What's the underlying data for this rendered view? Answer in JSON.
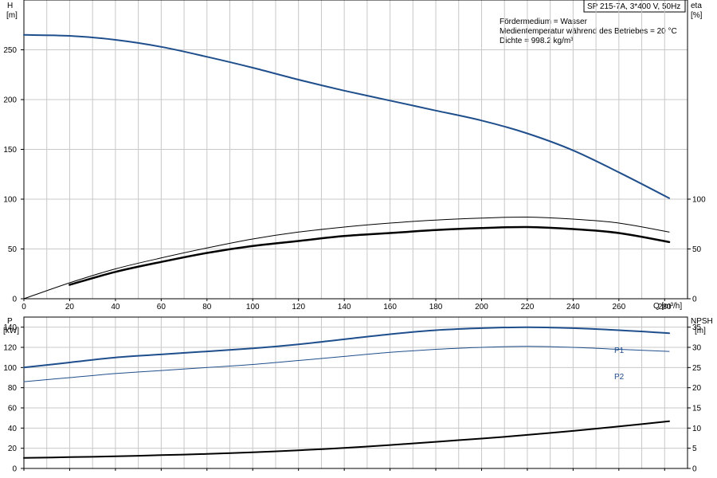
{
  "title_box": "SP 215-7A, 3*400 V, 50Hz",
  "info_lines": [
    "Fördermedium = Wasser",
    "Medientemperatur während des Betriebes = 20 °C",
    "Dichte = 998.2 kg/m³"
  ],
  "colors": {
    "blue": "#1f4e8c",
    "black": "#000000",
    "grid": "#c8c8c8"
  },
  "chart_data": [
    {
      "type": "line",
      "name_ref": "head-efficiency",
      "xlabel": "Q [m³/h]",
      "ylabel_top": "H",
      "ylabel_unit": "[m]",
      "y2label_top": "eta",
      "y2label_unit": "[%]",
      "xlim": [
        0,
        290
      ],
      "ylim": [
        0,
        300
      ],
      "y2lim": [
        0,
        300
      ],
      "x_ticks": [
        "0",
        "20",
        "40",
        "60",
        "80",
        "100",
        "120",
        "140",
        "160",
        "180",
        "200",
        "220",
        "240",
        "260",
        "280"
      ],
      "x_tick_values": [
        0,
        20,
        40,
        60,
        80,
        100,
        120,
        140,
        160,
        180,
        200,
        220,
        240,
        260,
        280
      ],
      "y_ticks": [
        "0",
        "50",
        "100",
        "150",
        "200",
        "250"
      ],
      "y_tick_values": [
        0,
        50,
        100,
        150,
        200,
        250
      ],
      "y2_ticks": [
        "0",
        "50",
        "100"
      ],
      "y2_tick_values": [
        0,
        50,
        100
      ],
      "grid": true,
      "series": [
        {
          "color": "#1f4e8c",
          "width": 2,
          "axis": "y",
          "x": [
            0,
            20,
            40,
            60,
            80,
            100,
            120,
            140,
            160,
            180,
            200,
            220,
            240,
            260,
            282
          ],
          "y": [
            265,
            264,
            260,
            253,
            243,
            232,
            220,
            209,
            199,
            189,
            179,
            166,
            149,
            127,
            101
          ]
        },
        {
          "color": "#000000",
          "width": 1,
          "axis": "y2",
          "x": [
            0,
            20,
            40,
            60,
            80,
            100,
            120,
            140,
            160,
            180,
            200,
            220,
            240,
            260,
            282
          ],
          "y": [
            0,
            16,
            30,
            41,
            51,
            60,
            67,
            72,
            76,
            79,
            81,
            82,
            80,
            76,
            67
          ]
        },
        {
          "color": "#000000",
          "width": 2.5,
          "axis": "y2",
          "x": [
            20,
            40,
            60,
            80,
            100,
            120,
            140,
            160,
            180,
            200,
            220,
            240,
            260,
            282
          ],
          "y": [
            14,
            27,
            37,
            46,
            53,
            58,
            63,
            66,
            69,
            71,
            72,
            70,
            66,
            57
          ]
        }
      ]
    },
    {
      "type": "line",
      "name_ref": "power-npsh",
      "ylabel_top": "P",
      "ylabel_unit": "[kW]",
      "y2label_top": "NPSH",
      "y2label_unit": "[m]",
      "xlim": [
        0,
        290
      ],
      "ylim": [
        0,
        150
      ],
      "y2lim": [
        0,
        37.5
      ],
      "y_ticks": [
        "0",
        "20",
        "40",
        "60",
        "80",
        "100",
        "120",
        "140"
      ],
      "y_tick_values": [
        0,
        20,
        40,
        60,
        80,
        100,
        120,
        140
      ],
      "y2_ticks": [
        "0",
        "5",
        "10",
        "15",
        "20",
        "25",
        "30",
        "35"
      ],
      "y2_tick_values": [
        0,
        5,
        10,
        15,
        20,
        25,
        30,
        35
      ],
      "grid": true,
      "series": [
        {
          "name": "P1",
          "color": "#1f4e8c",
          "width": 2,
          "axis": "y",
          "x": [
            0,
            20,
            40,
            60,
            80,
            100,
            120,
            140,
            160,
            180,
            200,
            220,
            240,
            260,
            282
          ],
          "y": [
            100,
            105,
            110,
            113,
            116,
            119,
            123,
            128,
            133,
            137,
            139,
            140,
            139,
            137,
            134
          ]
        },
        {
          "name": "P2",
          "color": "#1f4e8c",
          "width": 1,
          "axis": "y",
          "x": [
            0,
            20,
            40,
            60,
            80,
            100,
            120,
            140,
            160,
            180,
            200,
            220,
            240,
            260,
            282
          ],
          "y": [
            86,
            90,
            94,
            97,
            100,
            103,
            107,
            111,
            115,
            118,
            120,
            121,
            120,
            118,
            116
          ]
        },
        {
          "color": "#000000",
          "width": 2,
          "axis": "y2",
          "x": [
            0,
            20,
            40,
            60,
            80,
            100,
            120,
            140,
            160,
            180,
            200,
            220,
            240,
            260,
            282
          ],
          "y": [
            2.6,
            2.8,
            3.0,
            3.3,
            3.6,
            4.0,
            4.5,
            5.1,
            5.8,
            6.6,
            7.4,
            8.3,
            9.3,
            10.4,
            11.7
          ]
        }
      ]
    }
  ]
}
